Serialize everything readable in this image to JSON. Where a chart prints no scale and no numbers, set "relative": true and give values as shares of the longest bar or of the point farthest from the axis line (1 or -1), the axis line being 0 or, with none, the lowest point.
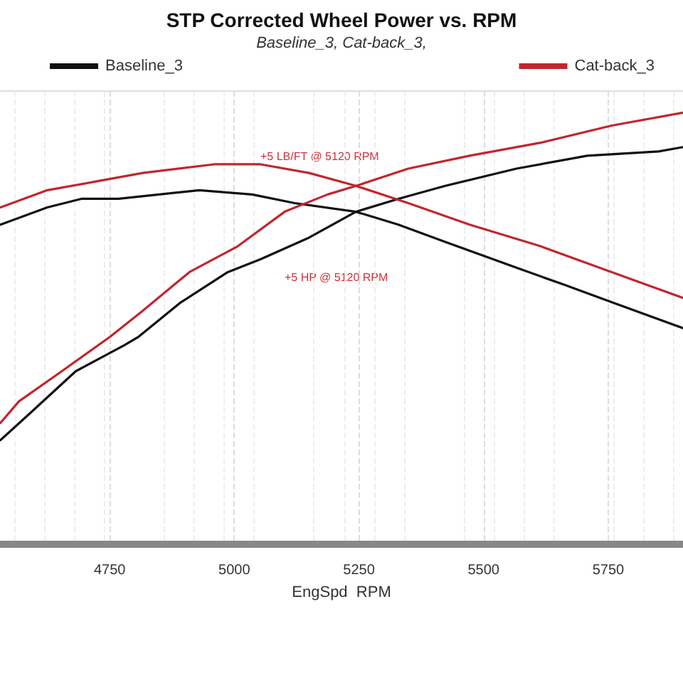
{
  "chart_data": {
    "type": "line",
    "title": "STP Corrected Wheel Power vs. RPM",
    "subtitle": "Baseline_3, Cat-back_3,",
    "xlabel": "EngSpd  RPM",
    "relative": true,
    "xlim": [
      4530,
      5900
    ],
    "xticks": [
      4750,
      5000,
      5250,
      5500,
      5750
    ],
    "grid": "x",
    "legend": "top",
    "marker": "none",
    "line_style": "solid",
    "annotations": [
      "+5 LB/FT @ 5120 RPM",
      "+5 HP @ 5120 RPM"
    ],
    "series": [
      {
        "name": "Baseline_3",
        "color": "#111111",
        "x": [
          4531,
          4625,
          4693,
          4768,
          4930,
          5036,
          5121,
          5244,
          5329,
          5423,
          5566,
          5663,
          5757,
          5900
        ],
        "values": [
          0.74,
          0.78,
          0.8,
          0.8,
          0.82,
          0.81,
          0.79,
          0.77,
          0.74,
          0.7,
          0.64,
          0.6,
          0.56,
          0.5
        ]
      },
      {
        "color": "#111111",
        "x": [
          4531,
          4588,
          4682,
          4779,
          4808,
          4893,
          4987,
          5053,
          5150,
          5244,
          5329,
          5423,
          5566,
          5708,
          5851,
          5900
        ],
        "values": [
          0.24,
          0.3,
          0.4,
          0.46,
          0.48,
          0.56,
          0.63,
          0.66,
          0.71,
          0.77,
          0.8,
          0.83,
          0.87,
          0.9,
          0.91,
          0.92
        ]
      },
      {
        "name": "Cat-back_3",
        "color": "#c0272d",
        "x": [
          4531,
          4625,
          4722,
          4816,
          4959,
          5053,
          5150,
          5244,
          5349,
          5472,
          5614,
          5757,
          5900
        ],
        "values": [
          0.78,
          0.82,
          0.84,
          0.86,
          0.88,
          0.88,
          0.86,
          0.83,
          0.79,
          0.74,
          0.69,
          0.63,
          0.57
        ]
      },
      {
        "color": "#c0272d",
        "x": [
          4531,
          4568,
          4654,
          4751,
          4816,
          4910,
          5007,
          5101,
          5187,
          5244,
          5349,
          5472,
          5614,
          5757,
          5900
        ],
        "values": [
          0.28,
          0.33,
          0.4,
          0.48,
          0.54,
          0.63,
          0.69,
          0.77,
          0.81,
          0.83,
          0.87,
          0.9,
          0.93,
          0.97,
          1.0
        ]
      }
    ]
  }
}
